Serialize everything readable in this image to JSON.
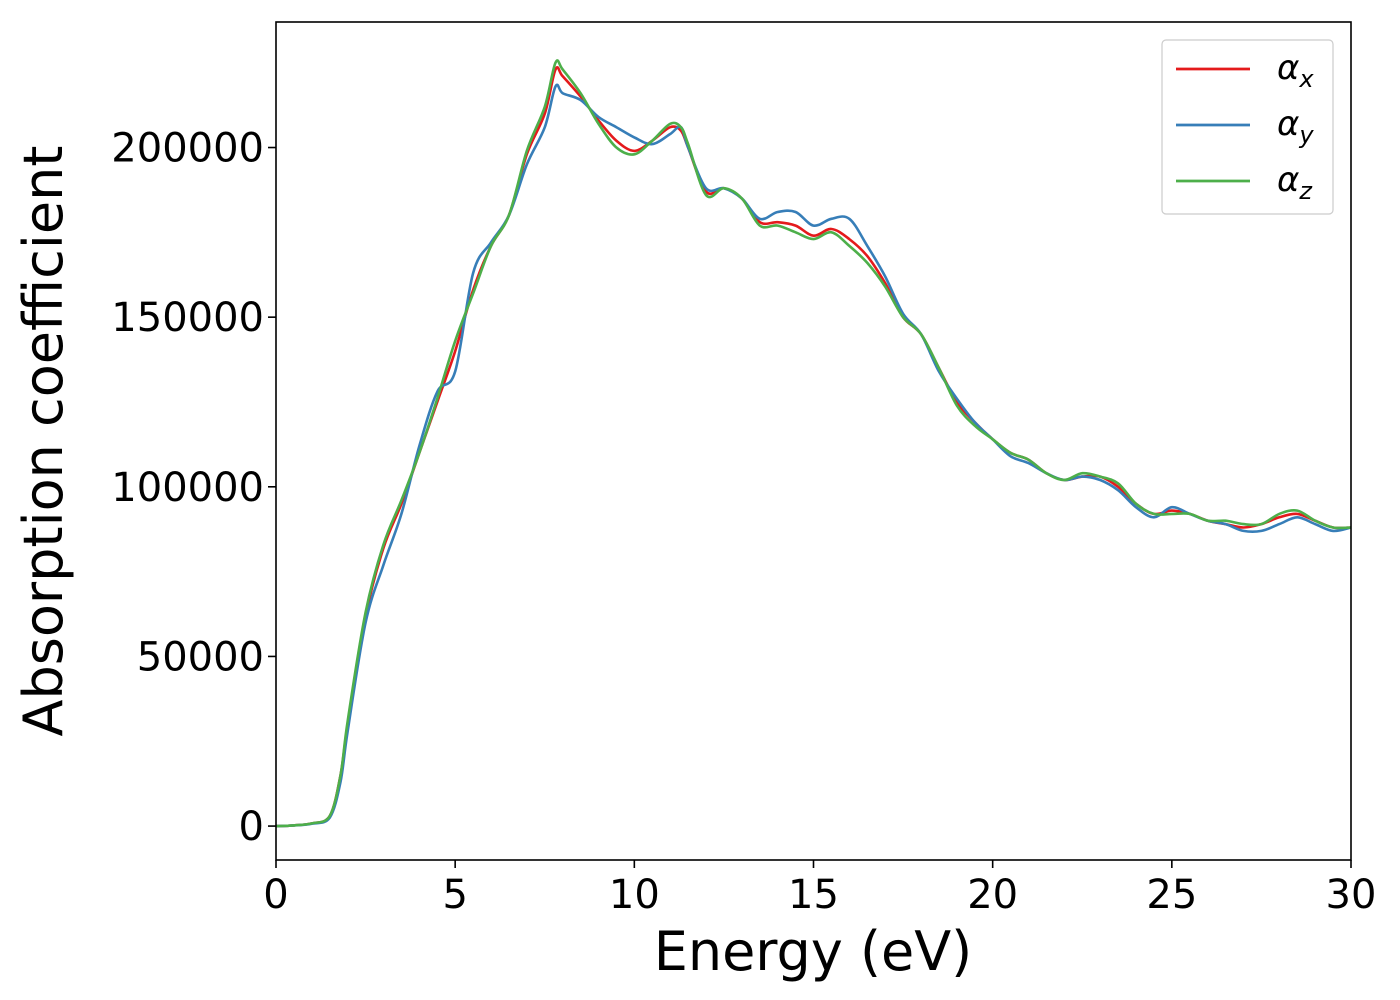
{
  "chart_data": {
    "type": "line",
    "title": "",
    "xlabel": "Energy (eV)",
    "ylabel": "Absorption coefficient",
    "xlim": [
      0,
      30
    ],
    "ylim": [
      -10000,
      237000
    ],
    "xticks": [
      0,
      5,
      10,
      15,
      20,
      25,
      30
    ],
    "yticks": [
      0,
      50000,
      100000,
      150000,
      200000
    ],
    "grid": false,
    "legend_position": "top-right",
    "series": [
      {
        "name": "α_x",
        "greek": "α",
        "sub": "x",
        "color": "#e41a1c",
        "x": [
          0,
          0.5,
          1.0,
          1.5,
          1.8,
          2.0,
          2.5,
          3.0,
          3.5,
          4.0,
          4.5,
          5.0,
          5.5,
          6.0,
          6.5,
          7.0,
          7.5,
          7.8,
          8.0,
          8.5,
          9.0,
          9.5,
          10.0,
          10.5,
          11.0,
          11.3,
          11.5,
          12.0,
          12.5,
          13.0,
          13.5,
          14.0,
          14.5,
          15.0,
          15.5,
          16.0,
          16.5,
          17.0,
          17.5,
          18.0,
          18.5,
          19.0,
          19.5,
          20.0,
          20.5,
          21.0,
          21.5,
          22.0,
          22.5,
          23.0,
          23.5,
          24.0,
          24.5,
          25.0,
          25.5,
          26.0,
          26.5,
          27.0,
          27.5,
          28.0,
          28.5,
          29.0,
          29.5,
          30.0
        ],
        "y": [
          0,
          200,
          800,
          3000,
          15000,
          30000,
          62000,
          82000,
          95000,
          110000,
          125000,
          140000,
          158000,
          171000,
          180000,
          198000,
          210000,
          223000,
          221000,
          215000,
          208000,
          202000,
          199000,
          202000,
          206000,
          205000,
          200000,
          187000,
          188000,
          185000,
          178000,
          178000,
          177000,
          174000,
          176000,
          173000,
          168000,
          160000,
          150000,
          145000,
          135000,
          125000,
          119000,
          114000,
          110000,
          108000,
          104000,
          102000,
          103000,
          103000,
          100000,
          95000,
          92000,
          93000,
          92000,
          90000,
          89000,
          88000,
          89000,
          91000,
          92000,
          90000,
          88000,
          88000
        ]
      },
      {
        "name": "α_y",
        "greek": "α",
        "sub": "y",
        "color": "#377eb8",
        "x": [
          0,
          0.5,
          1.0,
          1.5,
          1.8,
          2.0,
          2.5,
          3.0,
          3.5,
          4.0,
          4.5,
          5.0,
          5.5,
          6.0,
          6.5,
          7.0,
          7.5,
          7.8,
          8.0,
          8.5,
          9.0,
          9.5,
          10.0,
          10.5,
          11.0,
          11.3,
          11.5,
          12.0,
          12.5,
          13.0,
          13.5,
          14.0,
          14.5,
          15.0,
          15.5,
          16.0,
          16.5,
          17.0,
          17.5,
          18.0,
          18.5,
          19.0,
          19.5,
          20.0,
          20.5,
          21.0,
          21.5,
          22.0,
          22.5,
          23.0,
          23.5,
          24.0,
          24.5,
          25.0,
          25.5,
          26.0,
          26.5,
          27.0,
          27.5,
          28.0,
          28.5,
          29.0,
          29.5,
          30.0
        ],
        "y": [
          0,
          200,
          700,
          2500,
          13000,
          28000,
          60000,
          77000,
          92000,
          112000,
          128000,
          134000,
          163000,
          172000,
          180000,
          195000,
          206000,
          218000,
          216000,
          214000,
          209000,
          206000,
          203000,
          201000,
          204000,
          206000,
          200000,
          188000,
          188000,
          185000,
          179000,
          181000,
          181000,
          177000,
          179000,
          179000,
          171000,
          162000,
          151000,
          145000,
          134000,
          126000,
          119000,
          114000,
          109000,
          107000,
          104000,
          102000,
          103000,
          102000,
          99000,
          94000,
          91000,
          94000,
          92000,
          90000,
          89000,
          87000,
          87000,
          89000,
          91000,
          89000,
          87000,
          88000
        ]
      },
      {
        "name": "α_z",
        "greek": "α",
        "sub": "z",
        "color": "#4daf4a",
        "x": [
          0,
          0.5,
          1.0,
          1.5,
          1.8,
          2.0,
          2.5,
          3.0,
          3.5,
          4.0,
          4.5,
          5.0,
          5.5,
          6.0,
          6.5,
          7.0,
          7.5,
          7.8,
          8.0,
          8.5,
          9.0,
          9.5,
          10.0,
          10.5,
          11.0,
          11.3,
          11.5,
          12.0,
          12.5,
          13.0,
          13.5,
          14.0,
          14.5,
          15.0,
          15.5,
          16.0,
          16.5,
          17.0,
          17.5,
          18.0,
          18.5,
          19.0,
          19.5,
          20.0,
          20.5,
          21.0,
          21.5,
          22.0,
          22.5,
          23.0,
          23.5,
          24.0,
          24.5,
          25.0,
          25.5,
          26.0,
          26.5,
          27.0,
          27.5,
          28.0,
          28.5,
          29.0,
          29.5,
          30.0
        ],
        "y": [
          0,
          200,
          800,
          3000,
          15000,
          31000,
          63000,
          83000,
          96000,
          110000,
          126000,
          143000,
          157000,
          171000,
          180000,
          199000,
          212000,
          225000,
          223000,
          216000,
          207000,
          200000,
          198000,
          202000,
          207000,
          206000,
          201000,
          186000,
          188000,
          185000,
          177000,
          177000,
          175000,
          173000,
          175000,
          171000,
          166000,
          159000,
          150000,
          145000,
          135000,
          124000,
          118000,
          114000,
          110000,
          108000,
          104000,
          102000,
          104000,
          103000,
          101000,
          95000,
          92000,
          92000,
          92000,
          90000,
          90000,
          89000,
          89000,
          92000,
          93000,
          90000,
          88000,
          88000
        ]
      }
    ]
  }
}
